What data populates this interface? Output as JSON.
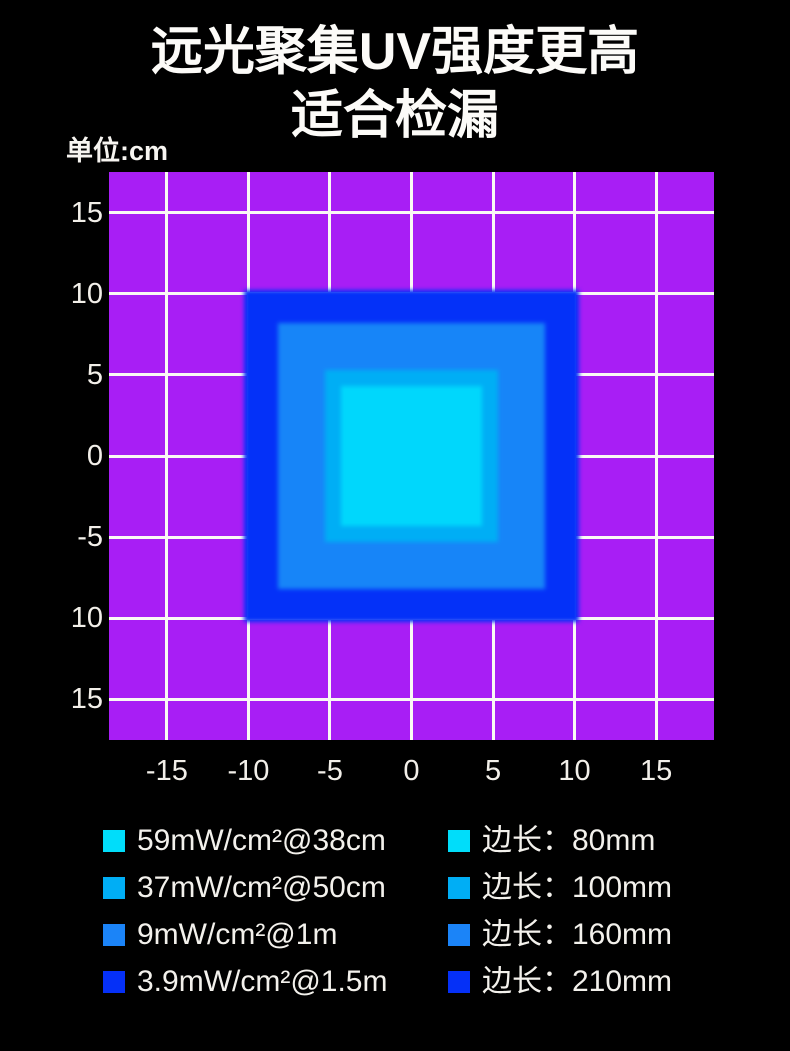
{
  "page": {
    "background": "#000000"
  },
  "title": {
    "line1": "远光聚集UV强度更高",
    "line2": "适合检漏"
  },
  "unit_label": "单位:cm",
  "chart_data": {
    "type": "heatmap",
    "description": "UV spotlight intensity footprint: nested concentric squares centered at origin showing beam size and irradiance at increasing distances",
    "title": "远光聚集UV强度更高 适合检漏",
    "unit": "cm",
    "grid": {
      "on": true,
      "spacing_cm": 5,
      "line_color": "#faf9f4"
    },
    "field_color": "#a81ef5",
    "x_axis": {
      "range": [
        -18.55,
        18.55
      ],
      "ticks": [
        {
          "v": -15,
          "label": "-15"
        },
        {
          "v": -10,
          "label": "-10"
        },
        {
          "v": -5,
          "label": "-5"
        },
        {
          "v": 0,
          "label": "0"
        },
        {
          "v": 5,
          "label": "5"
        },
        {
          "v": 10,
          "label": "10"
        },
        {
          "v": 15,
          "label": "15"
        }
      ]
    },
    "y_axis": {
      "range": [
        -17.5,
        17.5
      ],
      "ticks": [
        {
          "v": 15,
          "label": "15"
        },
        {
          "v": 10,
          "label": "10"
        },
        {
          "v": 5,
          "label": "5"
        },
        {
          "v": 0,
          "label": "0"
        },
        {
          "v": -5,
          "label": "-5"
        },
        {
          "v": -10,
          "label": "10"
        },
        {
          "v": -15,
          "label": "15"
        }
      ]
    },
    "squares": [
      {
        "side_mm": 210,
        "intensity": "3.9mW/cm²@1.5m",
        "color": "#0431f8",
        "drawn_side_cm": 20.5
      },
      {
        "side_mm": 160,
        "intensity": "9mW/cm²@1m",
        "color": "#1785f8",
        "drawn_side_cm": 16.4
      },
      {
        "side_mm": 100,
        "intensity": "37mW/cm²@50cm",
        "color": "#00aef5",
        "drawn_side_cm": 10.65
      },
      {
        "side_mm": 80,
        "intensity": "59mW/cm²@38cm",
        "color": "#00d7fc",
        "drawn_side_cm": 8.65
      }
    ]
  },
  "legend": {
    "intensity_column": [
      {
        "swatch_color": "#00ddfa",
        "label": "59mW/cm²@38cm"
      },
      {
        "swatch_color": "#00aef5",
        "label": "37mW/cm²@50cm"
      },
      {
        "swatch_color": "#1b84f8",
        "label": "9mW/cm²@1m"
      },
      {
        "swatch_color": "#0530f7",
        "label": "3.9mW/cm²@1.5m"
      }
    ],
    "size_column": [
      {
        "swatch_color": "#00ddfa",
        "label": "边长：80mm"
      },
      {
        "swatch_color": "#00aef5",
        "label": "边长：100mm"
      },
      {
        "swatch_color": "#1b84f8",
        "label": "边长：160mm"
      },
      {
        "swatch_color": "#0530f7",
        "label": "边长：210mm"
      }
    ]
  }
}
